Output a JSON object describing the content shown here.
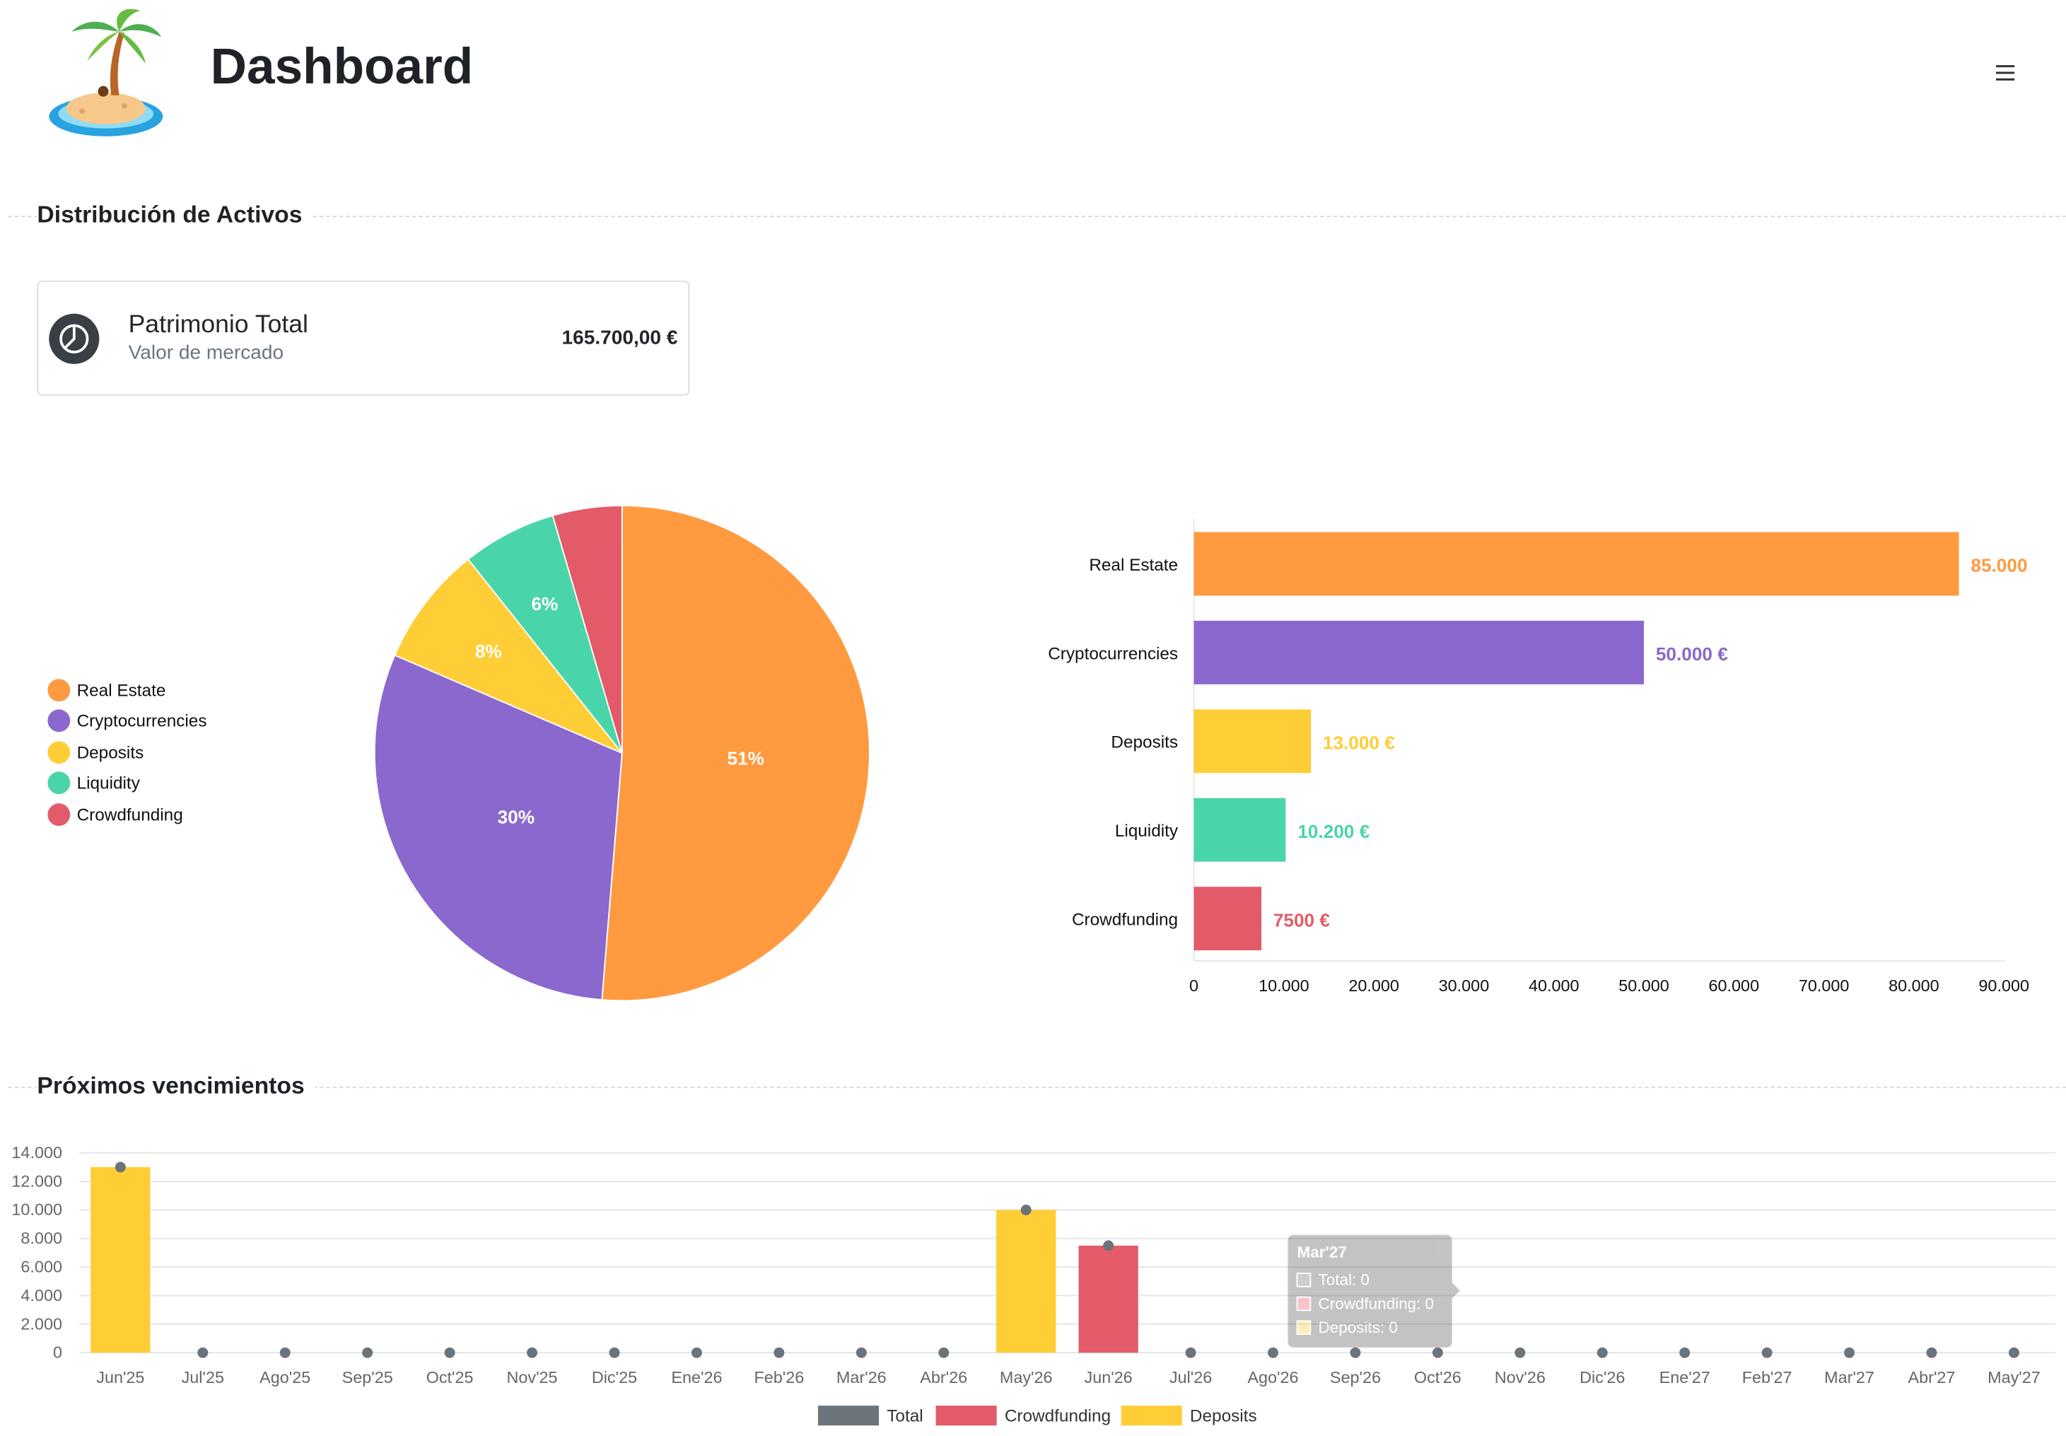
{
  "header": {
    "title": "Dashboard",
    "logo_icon": "palm-island-icon",
    "menu_icon": "hamburger-menu-icon"
  },
  "sections": {
    "distribution_title": "Distribución de Activos",
    "maturities_title": "Próximos vencimientos"
  },
  "summary_card": {
    "icon": "pie-chart-icon",
    "title": "Patrimonio Total",
    "subtitle": "Valor de mercado",
    "value": "165.700,00 €"
  },
  "colors": {
    "real_estate": "#ff9a40",
    "cryptocurrencies": "#8b68cd",
    "deposits": "#ffcd36",
    "liquidity": "#4ad4aa",
    "crowdfunding": "#e35b68",
    "total": "#6b737b"
  },
  "chart_data": [
    {
      "type": "pie",
      "categories": [
        "Real Estate",
        "Cryptocurrencies",
        "Deposits",
        "Liquidity",
        "Crowdfunding"
      ],
      "values": [
        85000,
        50000,
        13000,
        10200,
        7500
      ],
      "labels": [
        "51%",
        "30%",
        "8%",
        "6%",
        ""
      ],
      "legend": "left"
    },
    {
      "type": "bar",
      "orientation": "horizontal",
      "categories": [
        "Real Estate",
        "Cryptocurrencies",
        "Deposits",
        "Liquidity",
        "Crowdfunding"
      ],
      "values": [
        85000,
        50000,
        13000,
        10200,
        7500
      ],
      "value_labels": [
        "85.000",
        "50.000 €",
        "13.000 €",
        "10.200 €",
        "7500 €"
      ],
      "xlim": [
        0,
        90000
      ],
      "xticks": [
        "0",
        "10.000",
        "20.000",
        "30.000",
        "40.000",
        "50.000",
        "60.000",
        "70.000",
        "80.000",
        "90.000"
      ]
    },
    {
      "type": "bar",
      "categories": [
        "Jun'25",
        "Jul'25",
        "Ago'25",
        "Sep'25",
        "Oct'25",
        "Nov'25",
        "Dic'25",
        "Ene'26",
        "Feb'26",
        "Mar'26",
        "Abr'26",
        "May'26",
        "Jun'26",
        "Jul'26",
        "Ago'26",
        "Sep'26",
        "Oct'26",
        "Nov'26",
        "Dic'26",
        "Ene'27",
        "Feb'27",
        "Mar'27",
        "Abr'27",
        "May'27"
      ],
      "series": [
        {
          "name": "Total",
          "values": [
            13000,
            0,
            0,
            0,
            0,
            0,
            0,
            0,
            0,
            0,
            0,
            10000,
            7500,
            0,
            0,
            0,
            0,
            0,
            0,
            0,
            0,
            0,
            0,
            0
          ]
        },
        {
          "name": "Crowdfunding",
          "values": [
            0,
            0,
            0,
            0,
            0,
            0,
            0,
            0,
            0,
            0,
            0,
            0,
            7500,
            0,
            0,
            0,
            0,
            0,
            0,
            0,
            0,
            0,
            0,
            0
          ]
        },
        {
          "name": "Deposits",
          "values": [
            13000,
            0,
            0,
            0,
            0,
            0,
            0,
            0,
            0,
            0,
            0,
            10000,
            0,
            0,
            0,
            0,
            0,
            0,
            0,
            0,
            0,
            0,
            0,
            0
          ]
        }
      ],
      "ylim": [
        0,
        14000
      ],
      "yticks": [
        "0",
        "2.000",
        "4.000",
        "6.000",
        "8.000",
        "10.000",
        "12.000",
        "14.000"
      ],
      "legend": "bottom",
      "grid": true,
      "tooltip": {
        "title": "Mar'27",
        "lines": [
          "Total: 0",
          "Crowdfunding: 0",
          "Deposits: 0"
        ]
      }
    }
  ]
}
